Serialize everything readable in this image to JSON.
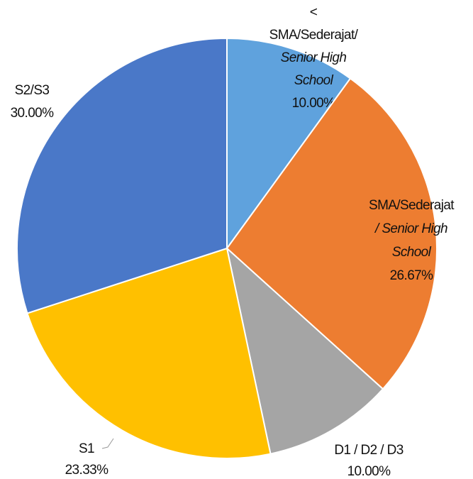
{
  "chart_data": {
    "type": "pie",
    "categories": [
      [
        "<",
        "SMA/Sederajat/",
        "Senior High",
        "School"
      ],
      [
        "SMA/Sederajat",
        "/ Senior High",
        "School"
      ],
      [
        "D1 / D2 / D3"
      ],
      [
        "S1"
      ],
      [
        "S2/S3"
      ]
    ],
    "values": [
      10,
      26.67,
      10,
      23.33,
      30
    ],
    "value_labels": [
      "10.00%",
      "26.67%",
      "10.00%",
      "23.33%",
      "30.00%"
    ],
    "colors": [
      "#5fa2dd",
      "#ed7d31",
      "#a5a5a5",
      "#ffc000",
      "#4a78c8"
    ]
  }
}
